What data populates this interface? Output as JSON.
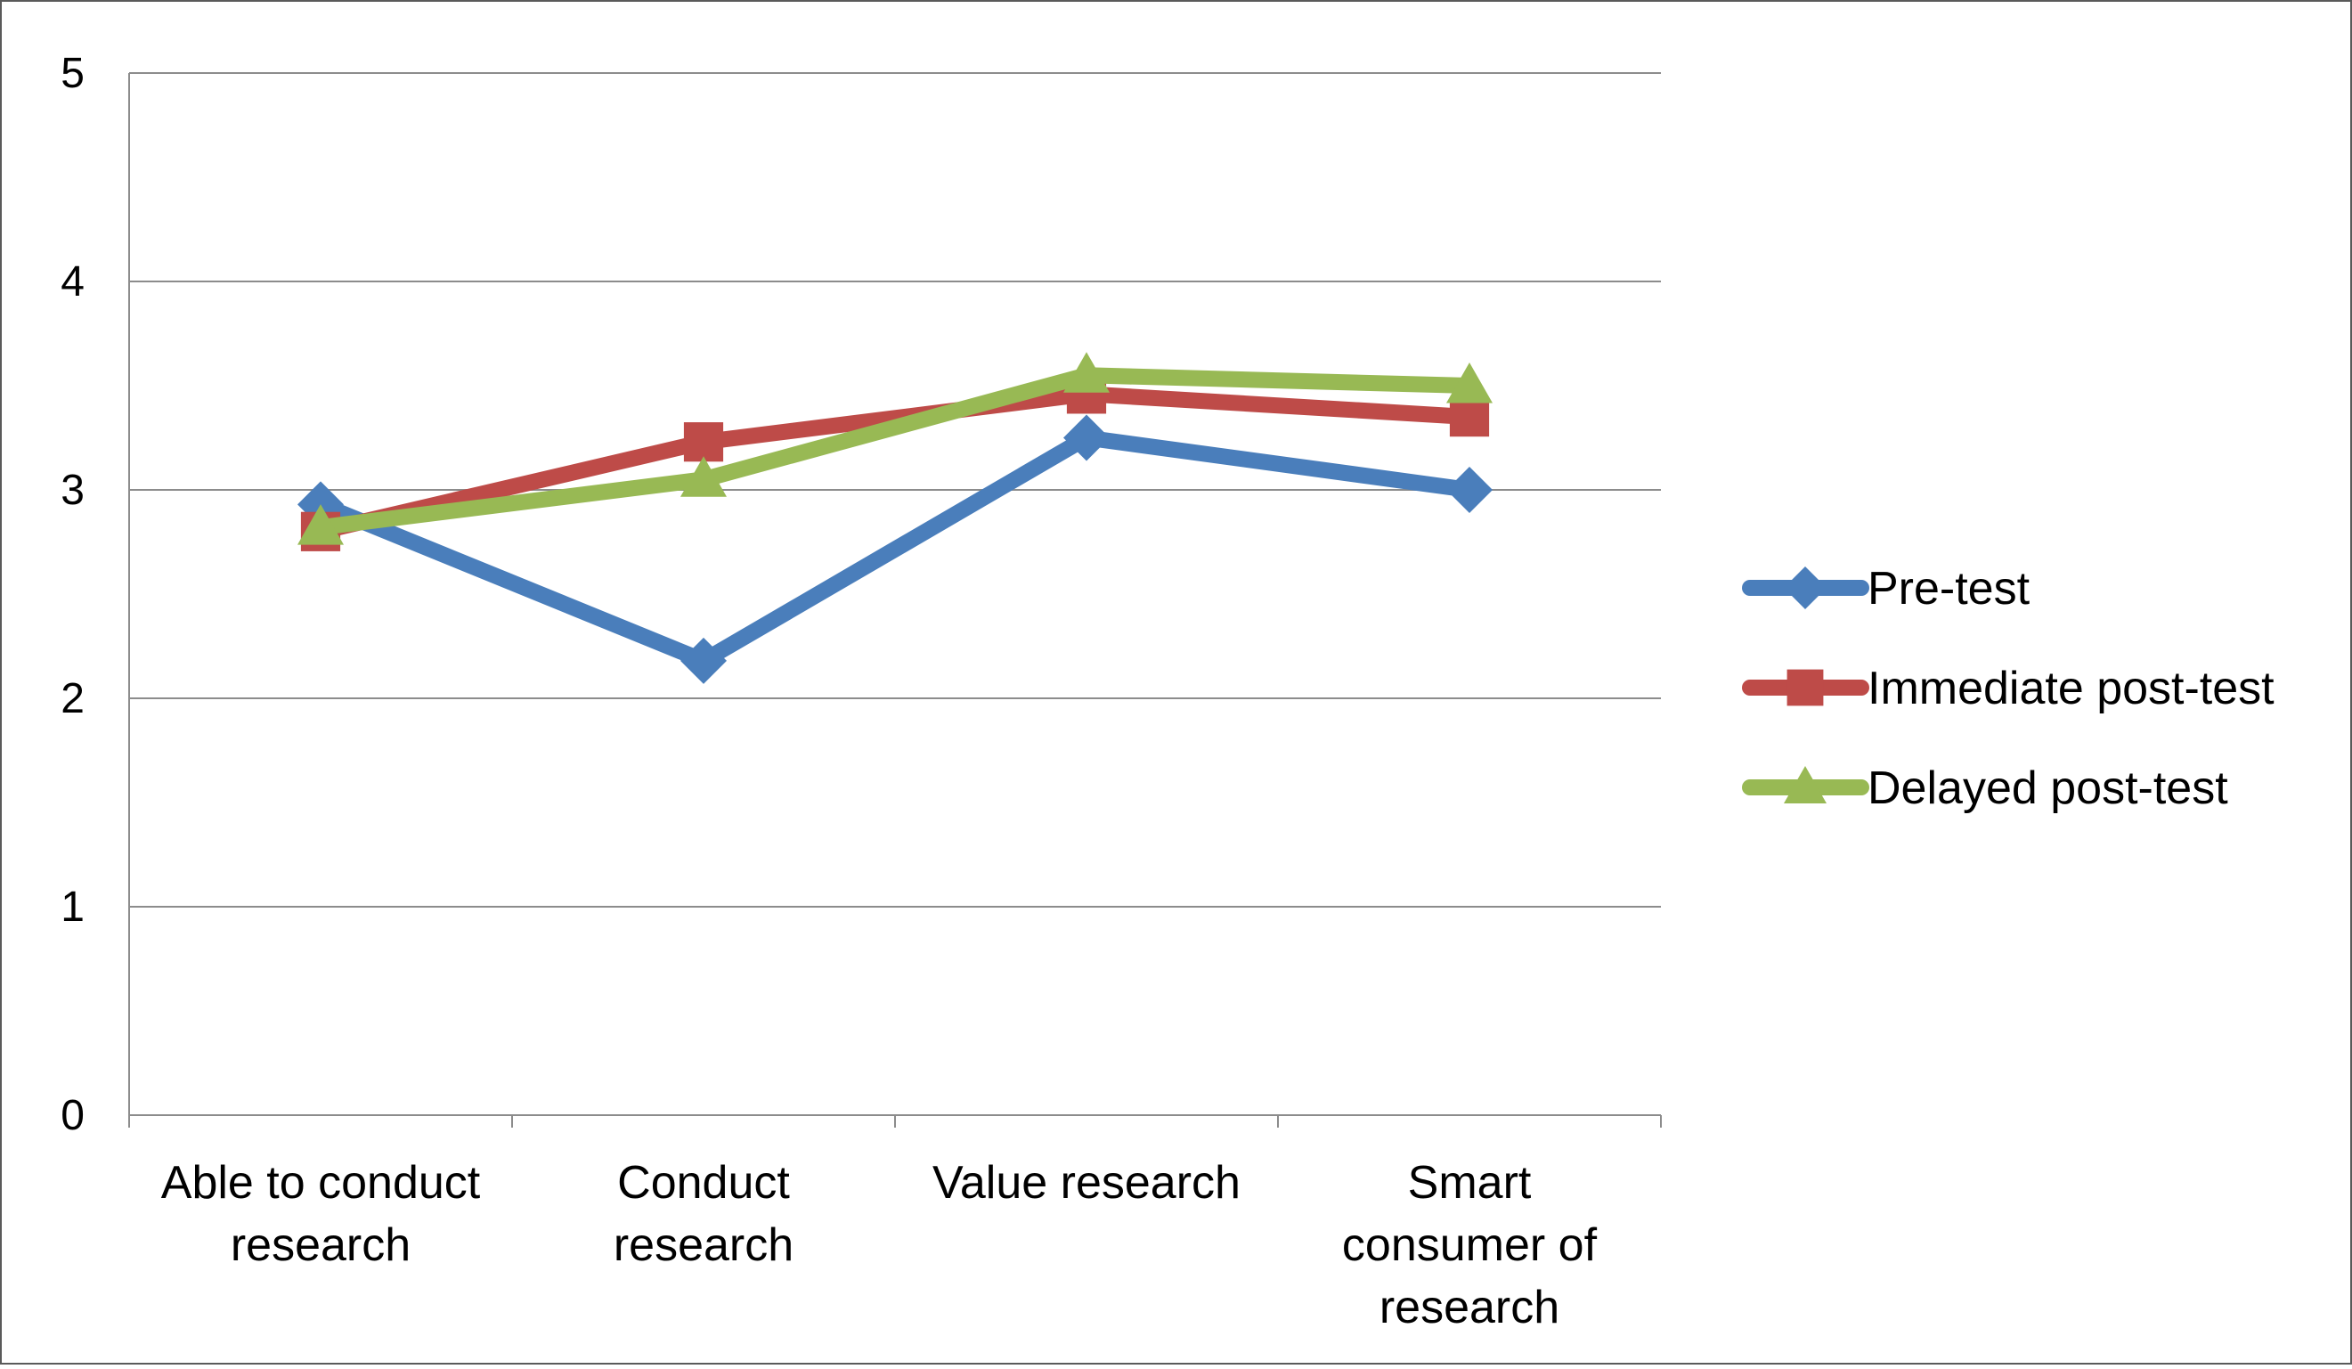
{
  "chart_data": {
    "type": "line",
    "title": "",
    "xlabel": "",
    "ylabel": "",
    "ylim": [
      0,
      5
    ],
    "yticks": [
      "0",
      "1",
      "2",
      "3",
      "4",
      "5"
    ],
    "grid": true,
    "legend_position": "right",
    "categories": [
      [
        "Able to conduct",
        "research"
      ],
      [
        "Conduct",
        "research"
      ],
      [
        "Value research"
      ],
      [
        "Smart",
        "consumer of",
        "research"
      ]
    ],
    "series": [
      {
        "name": "Pre-test",
        "color": "#4A7EBB",
        "marker": "diamond",
        "values": [
          2.93,
          2.18,
          3.25,
          3.0
        ]
      },
      {
        "name": "Immediate post-test",
        "color": "#BE4B48",
        "marker": "square",
        "values": [
          2.8,
          3.23,
          3.46,
          3.35
        ]
      },
      {
        "name": "Delayed post-test",
        "color": "#98B954",
        "marker": "triangle",
        "values": [
          2.82,
          3.05,
          3.55,
          3.5
        ]
      }
    ]
  }
}
